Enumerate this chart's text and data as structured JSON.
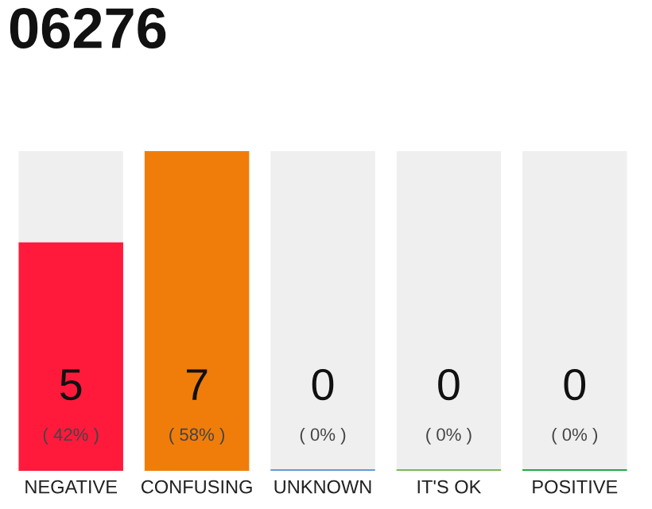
{
  "chart_data": {
    "type": "bar",
    "title": "06276",
    "categories": [
      "NEGATIVE",
      "CONFUSING",
      "UNKNOWN",
      "IT'S OK",
      "POSITIVE"
    ],
    "ylim": [
      0,
      7
    ],
    "grid": false,
    "legend": false,
    "tick_labels": "x",
    "series": [
      {
        "colors": [
          "#ff1a3c",
          "#f07d0a",
          "#6699dd",
          "#77bb55",
          "#22aa44"
        ],
        "values": [
          5,
          7,
          0,
          0,
          0
        ],
        "value_labels": [
          "5",
          "7",
          "0",
          "0",
          "0"
        ]
      }
    ],
    "annotations": [
      {
        "text": "( 42% )",
        "x": "NEGATIVE",
        "y": 0
      },
      {
        "text": "( 58% )",
        "x": "CONFUSING",
        "y": 0
      },
      {
        "text": "( 0% )",
        "x": "UNKNOWN",
        "y": 0
      },
      {
        "text": "( 0% )",
        "x": "IT'S OK",
        "y": 0
      },
      {
        "text": "( 0% )",
        "x": "POSITIVE",
        "y": 0
      }
    ]
  }
}
